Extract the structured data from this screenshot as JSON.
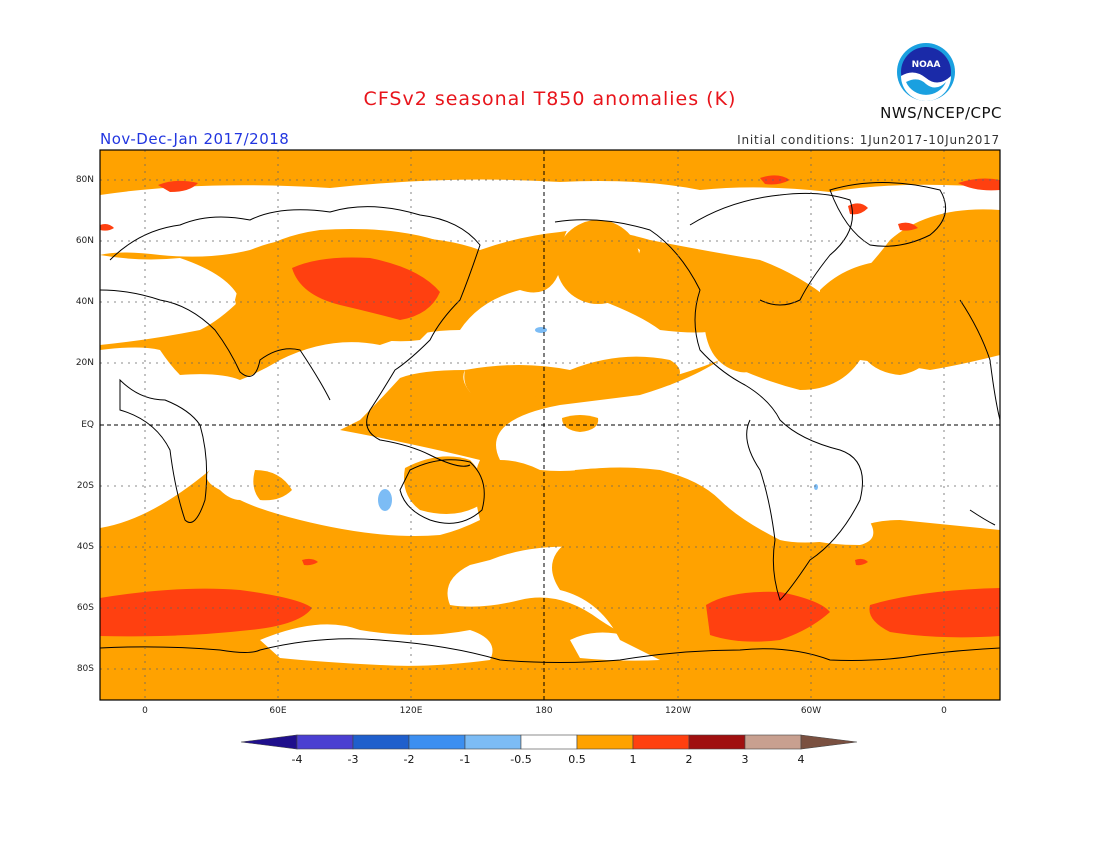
{
  "title": "CFSv2 seasonal T850 anomalies (K)",
  "period": "Nov-Dec-Jan 2017/2018",
  "initial_conditions": "Initial conditions: 1Jun2017-10Jun2017",
  "agency": "NWS/NCEP/CPC",
  "logo_text": "NOAA",
  "map": {
    "lat_labels": [
      "80N",
      "60N",
      "40N",
      "20N",
      "EQ",
      "20S",
      "40S",
      "60S",
      "80S"
    ],
    "lon_labels": [
      "0",
      "60E",
      "120E",
      "180",
      "120W",
      "60W",
      "0"
    ],
    "lon_range": [
      -20,
      380
    ],
    "lat_range": [
      -90,
      90
    ]
  },
  "legend": {
    "labels": [
      "-4",
      "-3",
      "-2",
      "-1",
      "-0.5",
      "0.5",
      "1",
      "2",
      "3",
      "4"
    ],
    "colors": [
      "#1f0f8c",
      "#4a3fd1",
      "#1f5fcc",
      "#3c8ff0",
      "#7cbcf5",
      "#ffffff",
      "#ffa200",
      "#ff4010",
      "#a01010",
      "#c8a090",
      "#7a5040"
    ]
  }
}
